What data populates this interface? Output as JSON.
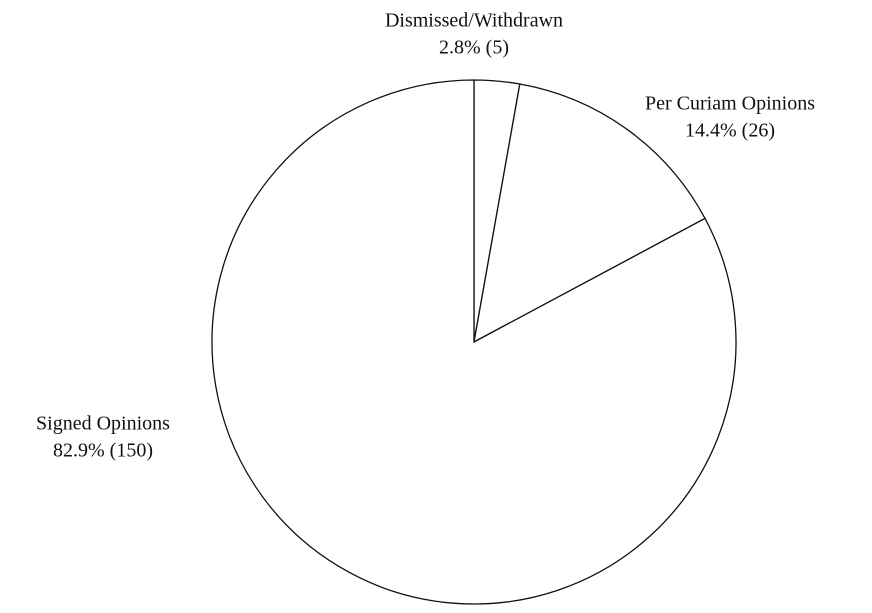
{
  "chart_data": {
    "type": "pie",
    "categories": [
      "Dismissed/Withdrawn",
      "Per Curiam Opinions",
      "Signed Opinions"
    ],
    "values": [
      2.8,
      14.4,
      82.9
    ],
    "value_labels": [
      "2.8% (5)",
      "14.4% (26)",
      "82.9% (150)"
    ],
    "colors": [
      "#ffffff",
      "#ffffff",
      "#ffffff"
    ],
    "edge_color": "#111111"
  }
}
